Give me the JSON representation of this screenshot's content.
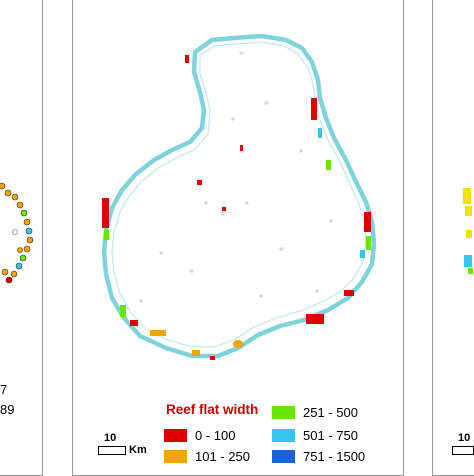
{
  "left_panel": {
    "numbers": [
      "7",
      "89"
    ]
  },
  "main_panel": {
    "legend": {
      "title": "Reef flat width",
      "title_color": "#cc0000",
      "items": [
        {
          "label": "0 - 100",
          "color": "#e00000"
        },
        {
          "label": "101 - 250",
          "color": "#f5a300"
        },
        {
          "label": "251 - 500",
          "color": "#66e600"
        },
        {
          "label": "501 - 750",
          "color": "#33c6f0"
        },
        {
          "label": "751 - 1500",
          "color": "#1565d8"
        }
      ]
    },
    "scale": {
      "value": "10",
      "unit": "Km"
    }
  },
  "right_panel": {
    "scale": {
      "value": "10"
    }
  },
  "colors": {
    "atoll_outline": "#7fd3dc",
    "panel_border": "#9a9a9a"
  }
}
